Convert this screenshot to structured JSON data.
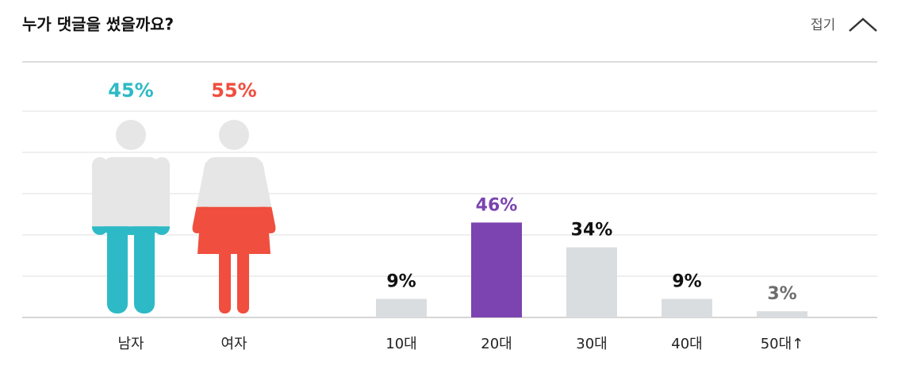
{
  "header": {
    "title": "누가 댓글을 썼을까요?",
    "toggle": "접기"
  },
  "chart_data": [
    {
      "type": "pictogram",
      "categories": [
        "남자",
        "여자"
      ],
      "values": [
        45,
        55
      ],
      "value_labels": [
        "45%",
        "55%"
      ],
      "colors": [
        "#2dbac6",
        "#f04e3e"
      ],
      "ylim": [
        0,
        100
      ]
    },
    {
      "type": "bar",
      "categories": [
        "10대",
        "20대",
        "30대",
        "40대",
        "50대↑"
      ],
      "values": [
        9,
        46,
        34,
        9,
        3
      ],
      "value_labels": [
        "9%",
        "46%",
        "34%",
        "9%",
        "3%"
      ],
      "colors": [
        "#d9dde0",
        "#7b44b0",
        "#d9dde0",
        "#d9dde0",
        "#d9dde0"
      ],
      "label_colors": [
        "#111111",
        "#7b44b0",
        "#111111",
        "#111111",
        "#6e6e6e"
      ],
      "ylim": [
        0,
        100
      ]
    }
  ]
}
